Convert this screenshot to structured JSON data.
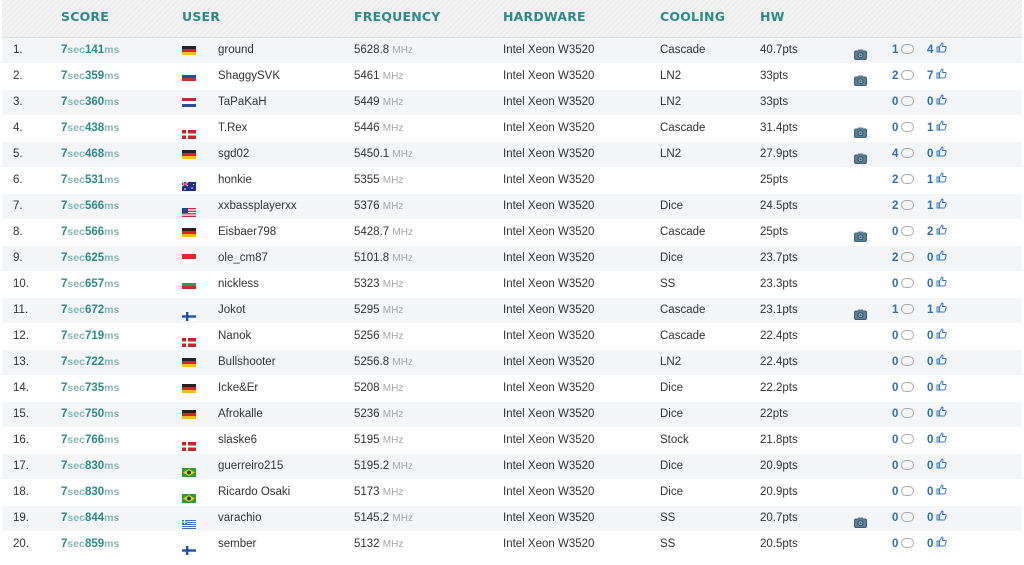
{
  "columns": {
    "score": "SCORE",
    "user": "USER",
    "frequency": "FREQUENCY",
    "hardware": "HARDWARE",
    "cooling": "COOLING",
    "hw": "HW"
  },
  "units": {
    "sec": "sec",
    "ms": "ms",
    "mhz": "MHz"
  },
  "colors": {
    "header_text": "#2e8a8a",
    "score_text": "#2e8a8a",
    "counter_text": "#2e6fb0",
    "row_alt": "#f3f5f7"
  },
  "rows": [
    {
      "rank": "1.",
      "sec": "7",
      "ms": "141",
      "flag": "germany",
      "user": "ground",
      "freq": "5628.8",
      "hardware": "Intel Xeon W3520",
      "cooling": "Cascade",
      "points": "40.7pts",
      "camera": true,
      "comments": "1",
      "likes": "4"
    },
    {
      "rank": "2.",
      "sec": "7",
      "ms": "359",
      "flag": "slovakia",
      "user": "ShaggySVK",
      "freq": "5461",
      "hardware": "Intel Xeon W3520",
      "cooling": "LN2",
      "points": "33pts",
      "camera": true,
      "comments": "2",
      "likes": "7"
    },
    {
      "rank": "3.",
      "sec": "7",
      "ms": "360",
      "flag": "netherlands",
      "user": "TaPaKaH",
      "freq": "5449",
      "hardware": "Intel Xeon W3520",
      "cooling": "LN2",
      "points": "33pts",
      "camera": false,
      "comments": "0",
      "likes": "0"
    },
    {
      "rank": "4.",
      "sec": "7",
      "ms": "438",
      "flag": "denmark",
      "user": "T.Rex",
      "freq": "5446",
      "hardware": "Intel Xeon W3520",
      "cooling": "Cascade",
      "points": "31.4pts",
      "camera": true,
      "comments": "0",
      "likes": "1"
    },
    {
      "rank": "5.",
      "sec": "7",
      "ms": "468",
      "flag": "germany",
      "user": "sgd02",
      "freq": "5450.1",
      "hardware": "Intel Xeon W3520",
      "cooling": "LN2",
      "points": "27.9pts",
      "camera": true,
      "comments": "4",
      "likes": "0"
    },
    {
      "rank": "6.",
      "sec": "7",
      "ms": "531",
      "flag": "australia",
      "user": "honkie",
      "freq": "5355",
      "hardware": "Intel Xeon W3520",
      "cooling": "",
      "points": "25pts",
      "camera": false,
      "comments": "2",
      "likes": "1"
    },
    {
      "rank": "7.",
      "sec": "7",
      "ms": "566",
      "flag": "usa",
      "user": "xxbassplayerxx",
      "freq": "5376",
      "hardware": "Intel Xeon W3520",
      "cooling": "Dice",
      "points": "24.5pts",
      "camera": false,
      "comments": "2",
      "likes": "1"
    },
    {
      "rank": "8.",
      "sec": "7",
      "ms": "566",
      "flag": "germany",
      "user": "Eisbaer798",
      "freq": "5428.7",
      "hardware": "Intel Xeon W3520",
      "cooling": "Cascade",
      "points": "25pts",
      "camera": true,
      "comments": "0",
      "likes": "2"
    },
    {
      "rank": "9.",
      "sec": "7",
      "ms": "625",
      "flag": "singapore",
      "user": "ole_cm87",
      "freq": "5101.8",
      "hardware": "Intel Xeon W3520",
      "cooling": "Dice",
      "points": "23.7pts",
      "camera": false,
      "comments": "2",
      "likes": "0"
    },
    {
      "rank": "10.",
      "sec": "7",
      "ms": "657",
      "flag": "bulgaria",
      "user": "nickless",
      "freq": "5323",
      "hardware": "Intel Xeon W3520",
      "cooling": "SS",
      "points": "23.3pts",
      "camera": false,
      "comments": "0",
      "likes": "0"
    },
    {
      "rank": "11.",
      "sec": "7",
      "ms": "672",
      "flag": "finland",
      "user": "Jokot",
      "freq": "5295",
      "hardware": "Intel Xeon W3520",
      "cooling": "Cascade",
      "points": "23.1pts",
      "camera": true,
      "comments": "1",
      "likes": "1"
    },
    {
      "rank": "12.",
      "sec": "7",
      "ms": "719",
      "flag": "denmark",
      "user": "Nanok",
      "freq": "5256",
      "hardware": "Intel Xeon W3520",
      "cooling": "Cascade",
      "points": "22.4pts",
      "camera": false,
      "comments": "0",
      "likes": "0"
    },
    {
      "rank": "13.",
      "sec": "7",
      "ms": "722",
      "flag": "germany",
      "user": "Bullshooter",
      "freq": "5256.8",
      "hardware": "Intel Xeon W3520",
      "cooling": "LN2",
      "points": "22.4pts",
      "camera": false,
      "comments": "0",
      "likes": "0"
    },
    {
      "rank": "14.",
      "sec": "7",
      "ms": "735",
      "flag": "germany",
      "user": "Icke&Er",
      "freq": "5208",
      "hardware": "Intel Xeon W3520",
      "cooling": "Dice",
      "points": "22.2pts",
      "camera": false,
      "comments": "0",
      "likes": "0"
    },
    {
      "rank": "15.",
      "sec": "7",
      "ms": "750",
      "flag": "germany",
      "user": "Afrokalle",
      "freq": "5236",
      "hardware": "Intel Xeon W3520",
      "cooling": "Dice",
      "points": "22pts",
      "camera": false,
      "comments": "0",
      "likes": "0"
    },
    {
      "rank": "16.",
      "sec": "7",
      "ms": "766",
      "flag": "denmark",
      "user": "slaske6",
      "freq": "5195",
      "hardware": "Intel Xeon W3520",
      "cooling": "Stock",
      "points": "21.8pts",
      "camera": false,
      "comments": "0",
      "likes": "0"
    },
    {
      "rank": "17.",
      "sec": "7",
      "ms": "830",
      "flag": "brazil",
      "user": "guerreiro215",
      "freq": "5195.2",
      "hardware": "Intel Xeon W3520",
      "cooling": "Dice",
      "points": "20.9pts",
      "camera": false,
      "comments": "0",
      "likes": "0"
    },
    {
      "rank": "18.",
      "sec": "7",
      "ms": "830",
      "flag": "brazil",
      "user": "Ricardo Osaki",
      "freq": "5173",
      "hardware": "Intel Xeon W3520",
      "cooling": "Dice",
      "points": "20.9pts",
      "camera": false,
      "comments": "0",
      "likes": "0"
    },
    {
      "rank": "19.",
      "sec": "7",
      "ms": "844",
      "flag": "greece",
      "user": "varachio",
      "freq": "5145.2",
      "hardware": "Intel Xeon W3520",
      "cooling": "SS",
      "points": "20.7pts",
      "camera": true,
      "comments": "0",
      "likes": "0"
    },
    {
      "rank": "20.",
      "sec": "7",
      "ms": "859",
      "flag": "finland",
      "user": "sember",
      "freq": "5132",
      "hardware": "Intel Xeon W3520",
      "cooling": "SS",
      "points": "20.5pts",
      "camera": false,
      "comments": "0",
      "likes": "0"
    }
  ]
}
